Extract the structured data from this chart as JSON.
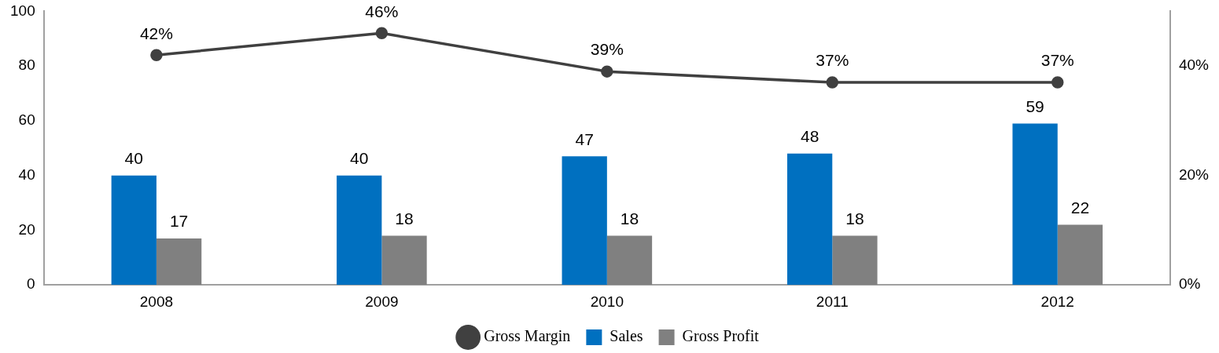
{
  "chart_data": {
    "type": "bar",
    "categories": [
      "2008",
      "2009",
      "2010",
      "2011",
      "2012"
    ],
    "series": [
      {
        "name": "Sales",
        "color": "#0070c0",
        "values": [
          40,
          40,
          47,
          48,
          59
        ],
        "value_labels": [
          "40",
          "40",
          "47",
          "48",
          "59"
        ]
      },
      {
        "name": "Gross Profit",
        "color": "#808080",
        "values": [
          17,
          18,
          18,
          18,
          22
        ],
        "value_labels": [
          "17",
          "18",
          "18",
          "18",
          "22"
        ]
      },
      {
        "name": "Gross Margin",
        "type": "line",
        "axis": "y2",
        "color": "#404040",
        "values": [
          42,
          46,
          39,
          37,
          37
        ],
        "value_labels": [
          "42%",
          "46%",
          "39%",
          "37%",
          "37%"
        ]
      }
    ],
    "ylim": [
      0,
      100
    ],
    "yticks": [
      0,
      20,
      40,
      60,
      80,
      100
    ],
    "y2lim": [
      0,
      50
    ],
    "y2ticks": [
      {
        "value": 0,
        "label": "0%"
      },
      {
        "value": 20,
        "label": "20%"
      },
      {
        "value": 40,
        "label": "40%"
      }
    ],
    "grid": false,
    "legend": "bottom",
    "marker": "circle",
    "line_style": "solid"
  }
}
